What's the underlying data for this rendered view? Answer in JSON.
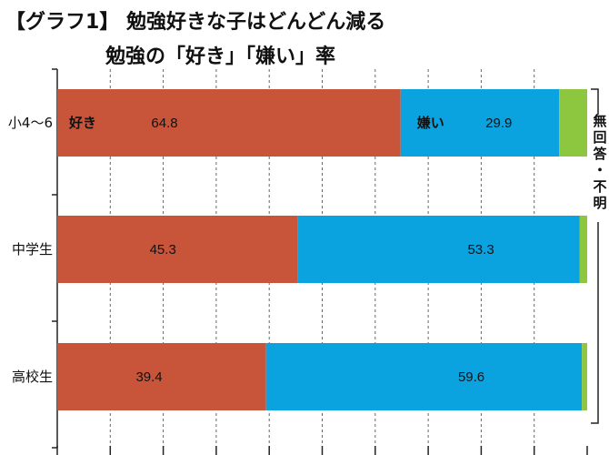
{
  "title_line1": "【グラフ1】 勉強好きな子はどんどん減る",
  "title_line2": "勉強の「好き」「嫌い」率",
  "chart_data": {
    "type": "bar",
    "orientation": "horizontal",
    "stacked": true,
    "categories": [
      "小4〜6",
      "中学生",
      "高校生"
    ],
    "series": [
      {
        "name": "好き",
        "values": [
          64.8,
          45.3,
          39.4
        ],
        "color": "#c8553a"
      },
      {
        "name": "嫌い",
        "values": [
          29.9,
          53.3,
          59.6
        ],
        "color": "#0aa3e0"
      },
      {
        "name": "無回答・不明",
        "values": [
          5.3,
          1.4,
          1.0
        ],
        "color": "#8dc63f"
      }
    ],
    "value_labels_shown_for": [
      "好き",
      "嫌い"
    ],
    "xlim": [
      0,
      100
    ],
    "grid": "vertical dashed",
    "legend": "inline labels"
  },
  "inline_keys": {
    "like": "好き",
    "dislike": "嫌い"
  },
  "side_note": "無回答・不明"
}
